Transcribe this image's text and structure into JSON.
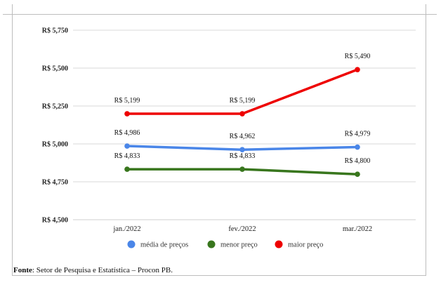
{
  "chart_data": {
    "type": "line",
    "categories": [
      "jan./2022",
      "fev./2022",
      "mar./2022"
    ],
    "ylim": [
      4500,
      5750
    ],
    "yticks": [
      4500,
      4750,
      5000,
      5250,
      5500,
      5750
    ],
    "ytick_labels": [
      "R$ 4,500",
      "R$ 4,750",
      "R$ 5,000",
      "R$ 5,250",
      "R$ 5,500",
      "R$ 5,750"
    ],
    "grid": true,
    "legend": "bottom",
    "series": [
      {
        "name": "média de preços",
        "color": "#4a86e8",
        "values": [
          4986,
          4962,
          4979
        ],
        "labels": [
          "R$ 4,986",
          "R$ 4,962",
          "R$ 4,979"
        ]
      },
      {
        "name": "menor preço",
        "color": "#38761d",
        "values": [
          4833,
          4833,
          4800
        ],
        "labels": [
          "R$ 4,833",
          "R$ 4,833",
          "R$ 4,800"
        ]
      },
      {
        "name": "maior preço",
        "color": "#ee0000",
        "values": [
          5199,
          5199,
          5490
        ],
        "labels": [
          "R$ 5,199",
          "R$ 5,199",
          "R$ 5,490"
        ]
      }
    ]
  },
  "source": {
    "label": "Fonte",
    "text": ": Setor de Pesquisa e Estatística – Procon PB."
  }
}
